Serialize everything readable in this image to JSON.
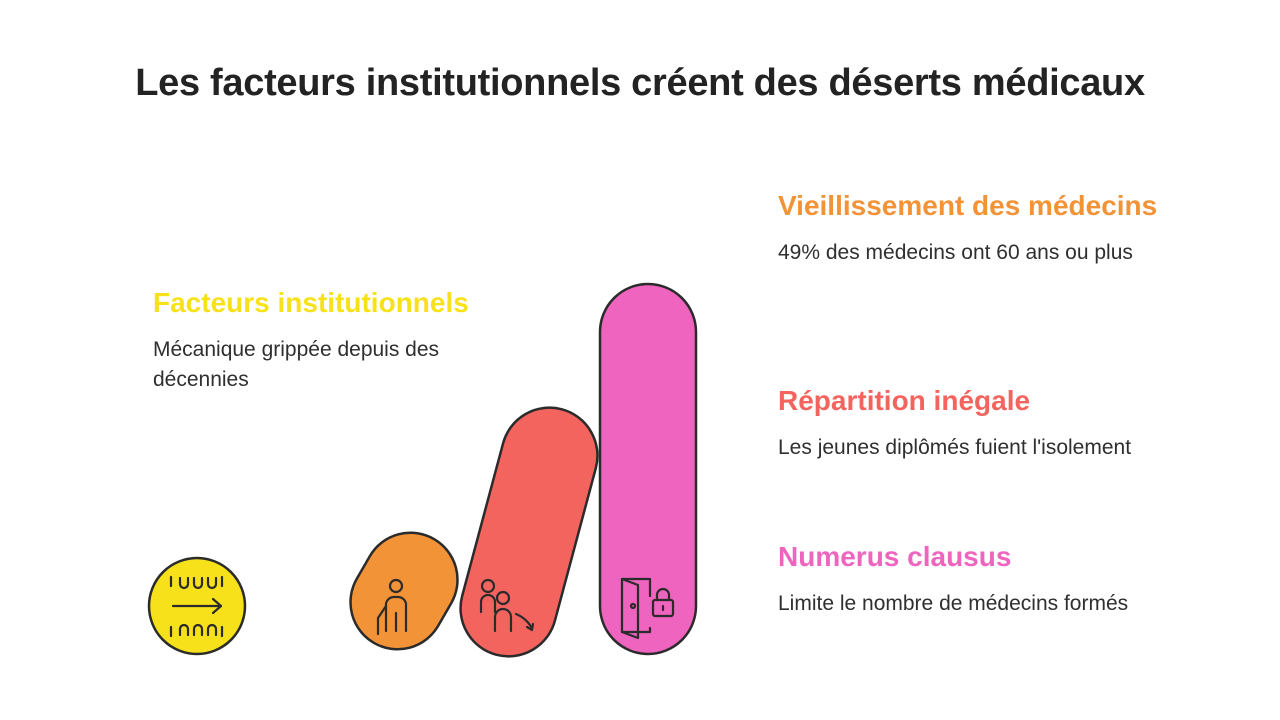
{
  "title": "Les facteurs institutionnels créent des déserts médicaux",
  "left": {
    "heading": "Facteurs institutionnels",
    "desc": "Mécanique grippée depuis des décennies",
    "icon": "pressure-arrow-icon",
    "color": "#f7e11a"
  },
  "items": [
    {
      "heading": "Vieillissement des médecins",
      "desc": "49% des médecins ont 60 ans ou plus",
      "icon": "elderly-person-icon",
      "color": "#f39338"
    },
    {
      "heading": "Répartition inégale",
      "desc": "Les jeunes diplômés fuient l'isolement",
      "icon": "people-leaving-icon",
      "color": "#f4645f"
    },
    {
      "heading": "Numerus clausus",
      "desc": "Limite le nombre de médecins formés",
      "icon": "locked-door-icon",
      "color": "#ee64bf"
    }
  ]
}
